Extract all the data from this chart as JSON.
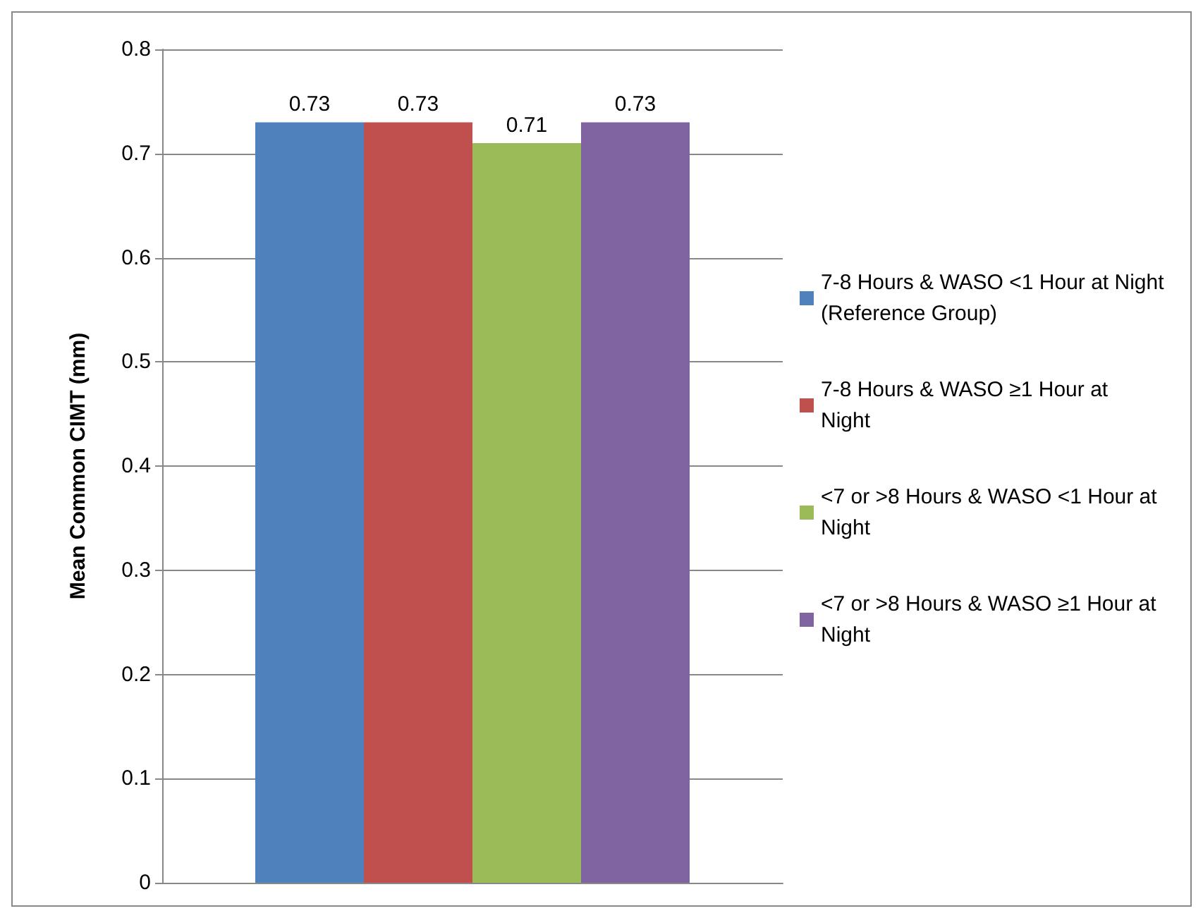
{
  "chart_data": {
    "type": "bar",
    "ylabel": "Mean Common CIMT (mm)",
    "categories": [
      null
    ],
    "series": [
      {
        "name": "7-8 Hours & WASO <1 Hour at Night (Reference Group)",
        "color": "#4f81bd",
        "values": [
          0.73
        ]
      },
      {
        "name": "7-8 Hours & WASO ≥1 Hour at Night",
        "color": "#c0504d",
        "values": [
          0.73
        ]
      },
      {
        "name": "<7 or >8 Hours & WASO <1 Hour at Night",
        "color": "#9bbb59",
        "values": [
          0.71
        ]
      },
      {
        "name": "<7 or >8 Hours & WASO ≥1 Hour at Night",
        "color": "#8064a2",
        "values": [
          0.73
        ]
      }
    ],
    "ylim": [
      0,
      0.8
    ],
    "yticks": [
      0,
      0.1,
      0.2,
      0.3,
      0.4,
      0.5,
      0.6,
      0.7,
      0.8
    ],
    "grid": "y",
    "legend": "right",
    "data_labels": true
  }
}
